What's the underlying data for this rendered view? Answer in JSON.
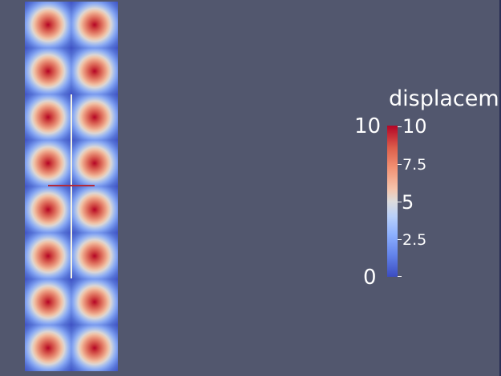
{
  "legend": {
    "title": "displacem",
    "range_max": "10",
    "range_min": "0",
    "ticks": [
      "10",
      "7.5",
      "5",
      "2.5"
    ],
    "colormap": [
      "#b40426",
      "#dddcdc",
      "#3b4cc0"
    ]
  },
  "field": {
    "rows": 8,
    "columns": 2,
    "peak_color": "#b40426",
    "base_color": "#3b4cc0"
  },
  "probe": {
    "vertical_color": "#f2f2e6",
    "horizontal_color": "#b22a3a"
  },
  "background_color": "#52576e"
}
